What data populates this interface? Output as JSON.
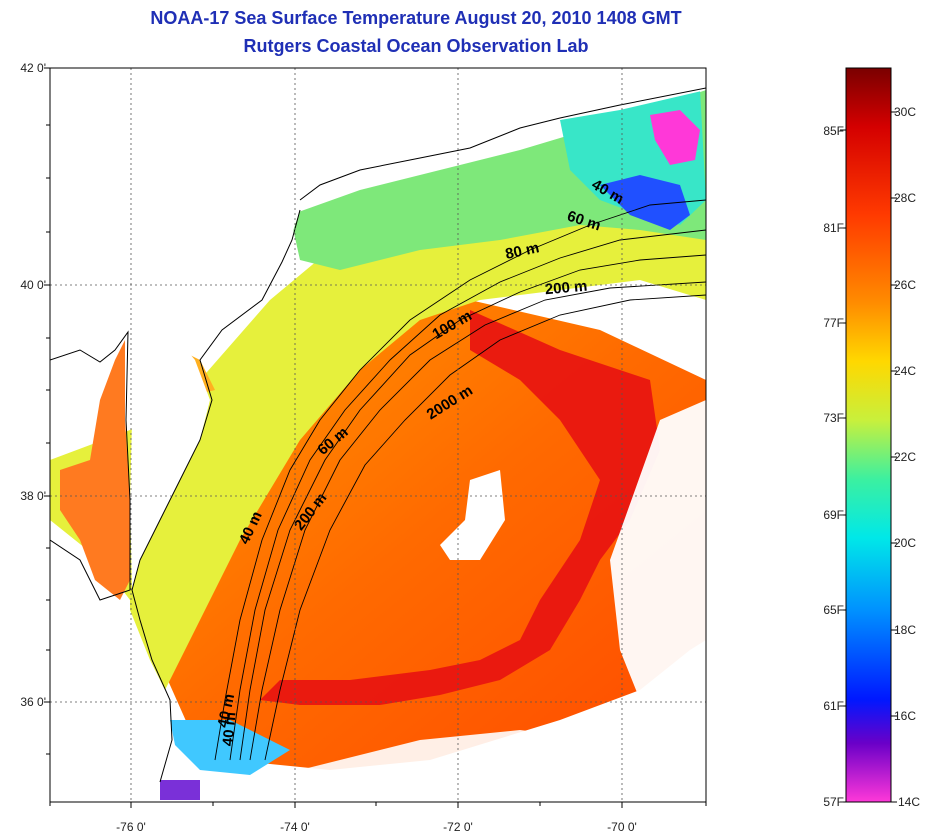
{
  "title": {
    "line1": "NOAA-17 Sea Surface Temperature August 20, 2010 1408 GMT",
    "line2": "Rutgers Coastal Ocean Observation Lab"
  },
  "axes": {
    "lat_labels": [
      "42 0'",
      "40 0'",
      "38 0'",
      "36 0'"
    ],
    "lon_labels": [
      "-76 0'",
      "-74 0'",
      "-72 0'",
      "-70 0'"
    ],
    "grid": "dotted"
  },
  "contours": {
    "labels": [
      "40 m",
      "60 m",
      "80 m",
      "200 m",
      "100 m",
      "2000 m",
      "60 m",
      "200 m",
      "40 m",
      "40 m",
      "40 m"
    ]
  },
  "colorbar": {
    "f_labels": [
      "85F",
      "81F",
      "77F",
      "73F",
      "69F",
      "65F",
      "61F",
      "57F"
    ],
    "c_labels": [
      "30C",
      "28C",
      "26C",
      "24C",
      "22C",
      "20C",
      "18C",
      "16C",
      "14C"
    ],
    "colors": [
      "#7a0000",
      "#d40000",
      "#ff3a00",
      "#ff8c00",
      "#ffd800",
      "#c8f03c",
      "#3cf0a0",
      "#00e8e8",
      "#0090ff",
      "#0018ff",
      "#6a00c8",
      "#ff38d8"
    ]
  }
}
